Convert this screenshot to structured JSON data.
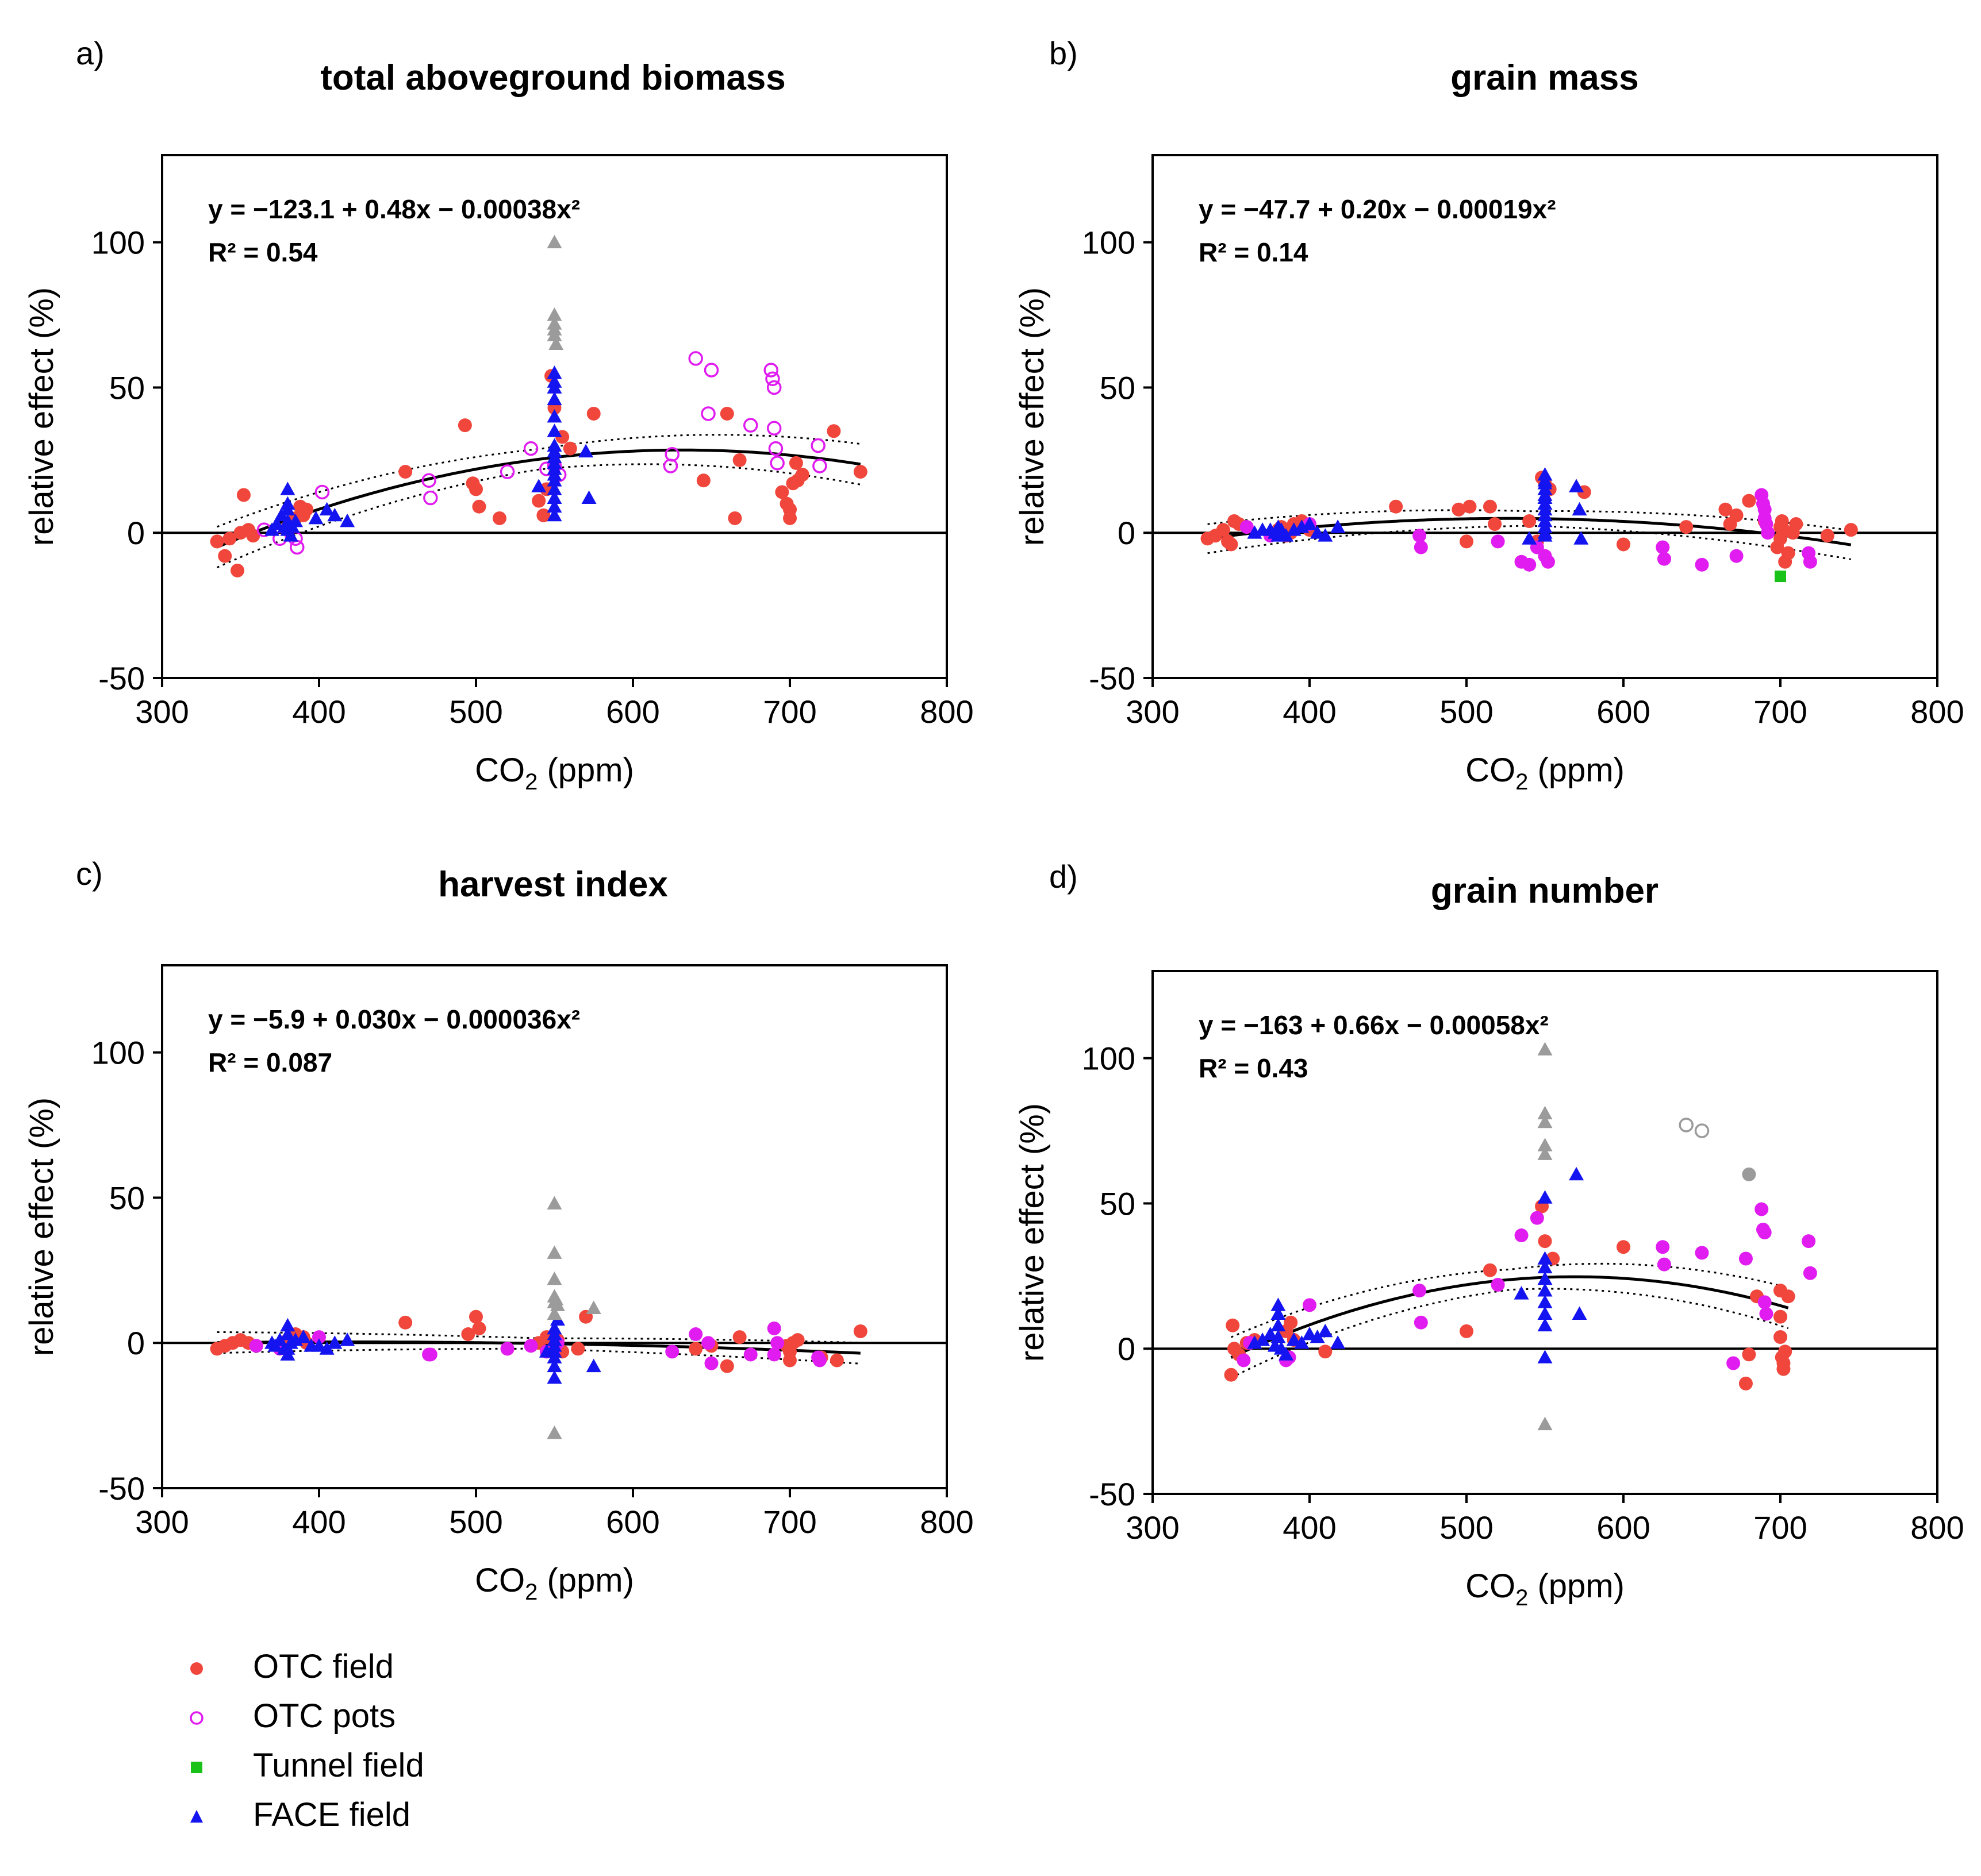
{
  "colors": {
    "otc_field": "#f0463c",
    "otc_pots": "#e01cf0",
    "tunnel_field": "#19c219",
    "face_field": "#1414f0",
    "excluded": "#9b9b9b",
    "axis": "#000000",
    "fit": "#000000"
  },
  "legend": {
    "items": [
      {
        "key": "otc_field",
        "label": "OTC field"
      },
      {
        "key": "otc_pots",
        "label": "OTC pots"
      },
      {
        "key": "tunnel_field",
        "label": "Tunnel field"
      },
      {
        "key": "face_field",
        "label": "FACE field"
      }
    ]
  },
  "chart_data": [
    {
      "type": "scatter",
      "panel": "a)",
      "title": "total aboveground biomass",
      "xlabel_main": "CO",
      "xlabel_sub": "2",
      "xlabel_unit": " (ppm)",
      "ylabel": "relative effect (%)",
      "xlim": [
        300,
        800
      ],
      "ylim": [
        -50,
        130
      ],
      "xticks": [
        300,
        400,
        500,
        600,
        700,
        800
      ],
      "yticks": [
        -50,
        0,
        50,
        100
      ],
      "equation": "y = −123.1 + 0.48x − 0.00038x²",
      "r2": "R² = 0.54",
      "fit": {
        "coef": [
          -123.1,
          0.48,
          -0.00038
        ],
        "range": [
          335,
          745
        ],
        "band": 3.5
      },
      "series": [
        {
          "name": "OTC field",
          "key": "otc_field",
          "x": [
            335,
            340,
            343,
            348,
            350,
            352,
            355,
            358,
            380,
            385,
            388,
            390,
            392,
            455,
            493,
            498,
            500,
            502,
            515,
            540,
            543,
            545,
            548,
            550,
            555,
            560,
            575,
            645,
            660,
            665,
            668,
            695,
            698,
            700,
            700,
            702,
            704,
            705,
            708,
            728,
            745
          ],
          "y": [
            -3,
            -8,
            -2,
            -13,
            0,
            13,
            1,
            -1,
            2,
            5,
            9,
            6,
            8,
            21,
            37,
            17,
            15,
            9,
            5,
            11,
            6,
            15,
            54,
            43,
            33,
            29,
            41,
            18,
            41,
            5,
            25,
            14,
            10,
            8,
            5,
            17,
            24,
            18,
            20,
            35,
            21
          ]
        },
        {
          "name": "OTC pots",
          "key": "otc_pots",
          "x": [
            365,
            375,
            385,
            386,
            402,
            470,
            471,
            520,
            535,
            545,
            550,
            553,
            624,
            625,
            640,
            648,
            650,
            675,
            688,
            689,
            690,
            690,
            691,
            692,
            718,
            719
          ],
          "y": [
            1,
            -2,
            -2,
            -5,
            14,
            18,
            12,
            21,
            29,
            22,
            23,
            20,
            23,
            27,
            60,
            41,
            56,
            37,
            56,
            53,
            50,
            36,
            29,
            24,
            30,
            23
          ],
          "hollow": true
        },
        {
          "name": "FACE field",
          "key": "face_field",
          "x": [
            370,
            373,
            376,
            378,
            380,
            380,
            380,
            380,
            380,
            382,
            383,
            385,
            398,
            405,
            410,
            418,
            540,
            550,
            550,
            550,
            550,
            550,
            550,
            550,
            550,
            550,
            550,
            550,
            550,
            550,
            550,
            550,
            550,
            550,
            570,
            572
          ],
          "y": [
            1,
            3,
            6,
            2,
            15,
            10,
            8,
            4,
            1,
            -1,
            2,
            4,
            5,
            8,
            6,
            4,
            16,
            52,
            50,
            46,
            40,
            35,
            30,
            26,
            22,
            18,
            15,
            12,
            9,
            6,
            24,
            28,
            20,
            55,
            28,
            12
          ]
        },
        {
          "name": "excluded",
          "key": "excluded",
          "x": [
            550,
            550,
            550,
            550,
            550,
            551
          ],
          "y": [
            100,
            75,
            72,
            70,
            68,
            65
          ]
        }
      ]
    },
    {
      "type": "scatter",
      "panel": "b)",
      "title": "grain mass",
      "xlabel_main": "CO",
      "xlabel_sub": "2",
      "xlabel_unit": " (ppm)",
      "ylabel": "relative effect (%)",
      "xlim": [
        300,
        800
      ],
      "ylim": [
        -50,
        130
      ],
      "xticks": [
        300,
        400,
        500,
        600,
        700,
        800
      ],
      "yticks": [
        -50,
        0,
        50,
        100
      ],
      "equation": "y = −47.7 + 0.20x − 0.00019x²",
      "r2": "R² = 0.14",
      "fit": {
        "coef": [
          -47.7,
          0.2,
          -0.00019
        ],
        "range": [
          335,
          745
        ],
        "band": 2.5
      },
      "series": [
        {
          "name": "OTC field",
          "key": "otc_field",
          "x": [
            335,
            340,
            345,
            348,
            350,
            352,
            355,
            380,
            382,
            385,
            388,
            390,
            395,
            400,
            455,
            495,
            500,
            502,
            515,
            518,
            540,
            545,
            548,
            550,
            553,
            575,
            600,
            640,
            665,
            668,
            672,
            680,
            690,
            698,
            700,
            700,
            701,
            702,
            703,
            705,
            708,
            710,
            730,
            745
          ],
          "y": [
            -2,
            -1,
            1,
            -3,
            -4,
            4,
            3,
            1,
            2,
            -1,
            0,
            3,
            4,
            1,
            9,
            8,
            -3,
            9,
            9,
            3,
            4,
            -3,
            19,
            17,
            15,
            14,
            -4,
            2,
            8,
            3,
            6,
            11,
            4,
            -5,
            2,
            -2,
            4,
            1,
            -10,
            -7,
            0,
            3,
            -1,
            1
          ]
        },
        {
          "name": "OTC pots",
          "key": "otc_pots",
          "x": [
            360,
            375,
            400,
            470,
            471,
            520,
            535,
            540,
            545,
            550,
            552,
            625,
            626,
            650,
            672,
            688,
            689,
            690,
            690,
            691,
            692,
            718,
            719
          ],
          "y": [
            2,
            -1,
            3,
            -1,
            -5,
            -3,
            -10,
            -11,
            -5,
            -8,
            -10,
            -5,
            -9,
            -11,
            -8,
            13,
            10,
            8,
            5,
            3,
            0,
            -7,
            -10
          ]
        },
        {
          "name": "Tunnel field",
          "key": "tunnel_field",
          "x": [
            700
          ],
          "y": [
            -15
          ]
        },
        {
          "name": "FACE field",
          "key": "face_field",
          "x": [
            365,
            370,
            375,
            378,
            380,
            380,
            382,
            385,
            390,
            395,
            400,
            405,
            410,
            418,
            540,
            550,
            550,
            550,
            550,
            550,
            550,
            550,
            550,
            550,
            550,
            550,
            550,
            550,
            570,
            572,
            573
          ],
          "y": [
            0,
            1,
            1,
            0,
            2,
            -1,
            1,
            -1,
            1,
            2,
            3,
            0,
            -1,
            2,
            -2,
            18,
            17,
            15,
            13,
            10,
            8,
            6,
            4,
            2,
            0,
            -1,
            20,
            12,
            16,
            8,
            -2
          ]
        }
      ]
    },
    {
      "type": "scatter",
      "panel": "c)",
      "title": "harvest index",
      "xlabel_main": "CO",
      "xlabel_sub": "2",
      "xlabel_unit": " (ppm)",
      "ylabel": "relative effect (%)",
      "xlim": [
        300,
        800
      ],
      "ylim": [
        -50,
        130
      ],
      "xticks": [
        300,
        400,
        500,
        600,
        700,
        800
      ],
      "yticks": [
        -50,
        0,
        50,
        100
      ],
      "equation": "y = −5.9 + 0.030x − 0.000036x²",
      "r2": "R² = 0.087",
      "fit": {
        "coef": [
          -5.9,
          0.03,
          -3.6e-05
        ],
        "range": [
          335,
          745
        ],
        "band": 1.8
      },
      "series": [
        {
          "name": "OTC field",
          "key": "otc_field",
          "x": [
            335,
            340,
            345,
            350,
            355,
            360,
            380,
            385,
            390,
            392,
            455,
            495,
            500,
            502,
            520,
            540,
            545,
            550,
            552,
            555,
            565,
            570,
            640,
            650,
            660,
            668,
            698,
            700,
            700,
            702,
            705,
            720,
            730,
            745
          ],
          "y": [
            -2,
            -1,
            0,
            1,
            0,
            -1,
            1,
            3,
            2,
            0,
            7,
            3,
            9,
            5,
            -2,
            0,
            2,
            -1,
            1,
            -3,
            -2,
            9,
            -2,
            -1,
            -8,
            2,
            -1,
            -3,
            -6,
            0,
            1,
            -5,
            -6,
            4
          ]
        },
        {
          "name": "OTC pots",
          "key": "otc_pots",
          "x": [
            360,
            375,
            400,
            470,
            471,
            520,
            535,
            545,
            550,
            552,
            625,
            640,
            648,
            650,
            675,
            690,
            690,
            692,
            718,
            719
          ],
          "y": [
            -1,
            -2,
            2,
            -4,
            -4,
            -2,
            -1,
            -3,
            -2,
            0,
            -3,
            3,
            0,
            -7,
            -4,
            5,
            -4,
            0,
            -5,
            -6
          ]
        },
        {
          "name": "FACE field",
          "key": "face_field",
          "x": [
            370,
            372,
            375,
            378,
            380,
            380,
            380,
            380,
            382,
            385,
            390,
            395,
            400,
            405,
            410,
            418,
            545,
            550,
            550,
            550,
            550,
            550,
            550,
            550,
            550,
            552,
            575
          ],
          "y": [
            0,
            -1,
            1,
            -2,
            6,
            3,
            -4,
            -2,
            0,
            1,
            2,
            -1,
            -1,
            -2,
            0,
            1,
            -3,
            -12,
            -8,
            -5,
            -3,
            -1,
            1,
            3,
            5,
            8,
            -8
          ]
        },
        {
          "name": "excluded",
          "key": "excluded",
          "x": [
            550,
            550,
            550,
            550,
            550,
            550,
            551,
            552,
            575,
            550
          ],
          "y": [
            48,
            31,
            22,
            16,
            14,
            10,
            15,
            13,
            12,
            -31
          ]
        }
      ]
    },
    {
      "type": "scatter",
      "panel": "d)",
      "title": "grain number",
      "xlabel_main": "CO",
      "xlabel_sub": "2",
      "xlabel_unit": " (ppm)",
      "ylabel": "relative effect (%)",
      "xlim": [
        300,
        800
      ],
      "ylim": [
        -50,
        130
      ],
      "xticks": [
        300,
        400,
        500,
        600,
        700,
        800
      ],
      "yticks": [
        -50,
        0,
        50,
        100
      ],
      "equation": "y = −163 + 0.66x − 0.00058x²",
      "r2": "R² = 0.43",
      "fit": {
        "coef": [
          -163,
          0.66,
          -0.00058
        ],
        "range": [
          350,
          705
        ],
        "band": 3.5
      },
      "series": [
        {
          "name": "OTC field",
          "key": "otc_field",
          "x": [
            350,
            351,
            352,
            355,
            360,
            365,
            385,
            388,
            390,
            410,
            500,
            515,
            548,
            550,
            555,
            600,
            678,
            680,
            685,
            700,
            700,
            700,
            701,
            702,
            702,
            703,
            705
          ],
          "y": [
            -9,
            8,
            0,
            -2,
            2,
            3,
            6,
            9,
            3,
            -1,
            6,
            27,
            49,
            37,
            31,
            35,
            -12,
            -2,
            18,
            20,
            11,
            4,
            -3,
            -5,
            -7,
            -1,
            18
          ]
        },
        {
          "name": "OTC pots",
          "key": "otc_pots",
          "x": [
            358,
            362,
            385,
            387,
            400,
            470,
            471,
            520,
            535,
            545,
            625,
            626,
            650,
            670,
            678,
            688,
            689,
            690,
            690,
            691,
            718,
            719
          ],
          "y": [
            -4,
            2,
            -4,
            -3,
            15,
            20,
            9,
            22,
            39,
            45,
            35,
            29,
            33,
            -5,
            31,
            48,
            41,
            40,
            16,
            12,
            37,
            26
          ]
        },
        {
          "name": "FACE field",
          "key": "face_field",
          "x": [
            365,
            370,
            375,
            378,
            380,
            380,
            380,
            380,
            382,
            385,
            390,
            395,
            400,
            405,
            410,
            418,
            535,
            550,
            550,
            550,
            550,
            550,
            550,
            550,
            550,
            550,
            570,
            572
          ],
          "y": [
            2,
            3,
            5,
            1,
            15,
            12,
            8,
            4,
            0,
            -2,
            3,
            2,
            5,
            4,
            6,
            2,
            19,
            52,
            31,
            28,
            24,
            20,
            16,
            12,
            8,
            -3,
            60,
            12
          ]
        },
        {
          "name": "excluded",
          "key": "excluded",
          "x": [
            550,
            550,
            550,
            550,
            550,
            550,
            680,
            640,
            650
          ],
          "y": [
            103,
            81,
            78,
            70,
            67,
            -26,
            60,
            77,
            75
          ],
          "hollow_idx": [
            7,
            8
          ]
        }
      ]
    }
  ]
}
